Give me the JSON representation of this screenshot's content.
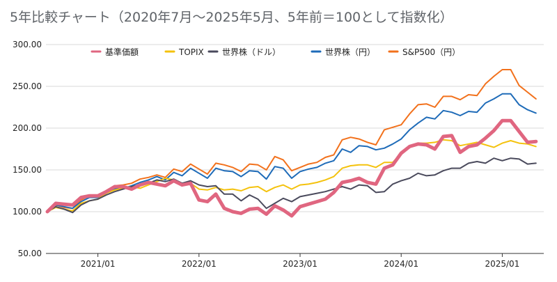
{
  "chart_data": {
    "type": "line",
    "title": "5年比較チャート（2020年7月〜2025年5月、5年前＝100として指数化）",
    "xlabel": "",
    "ylabel": "",
    "ylim": [
      50,
      300
    ],
    "yticks": [
      "300.00",
      "250.00",
      "200.00",
      "150.00",
      "100.00",
      "50.00"
    ],
    "x_start": "2020/07",
    "x_tick_labels": [
      "2021/01",
      "2022/01",
      "2023/01",
      "2024/01",
      "2025/01"
    ],
    "x_tick_months": [
      6,
      18,
      30,
      42,
      54
    ],
    "grid": true,
    "legend_position": "top",
    "series": [
      {
        "name": "基準価額",
        "color": "#e06680",
        "values": [
          100,
          110,
          109,
          108,
          117,
          119,
          119,
          124,
          130,
          130,
          127,
          132,
          135,
          133,
          131,
          137,
          132,
          134,
          114,
          112,
          121,
          104,
          100,
          98,
          103,
          104,
          97,
          107,
          102,
          95,
          106,
          109,
          112,
          115,
          123,
          135,
          137,
          140,
          135,
          133,
          152,
          156,
          170,
          178,
          181,
          180,
          175,
          190,
          191,
          171,
          178,
          180,
          188,
          197,
          209,
          209,
          196,
          183,
          184
        ]
      },
      {
        "name": "TOPIX",
        "color": "#f4c20d",
        "values": [
          100,
          105,
          103,
          101,
          110,
          113,
          115,
          122,
          126,
          128,
          130,
          128,
          132,
          136,
          140,
          138,
          133,
          134,
          127,
          126,
          129,
          126,
          127,
          125,
          129,
          130,
          124,
          129,
          132,
          127,
          132,
          133,
          135,
          138,
          142,
          152,
          155,
          156,
          156,
          153,
          159,
          159,
          170,
          178,
          182,
          182,
          183,
          186,
          185,
          179,
          181,
          183,
          180,
          177,
          182,
          185,
          182,
          181,
          178
        ]
      },
      {
        "name": "世界株（ドル）",
        "color": "#4a4a5c",
        "values": [
          100,
          106,
          103,
          99,
          108,
          113,
          115,
          120,
          124,
          127,
          130,
          132,
          134,
          138,
          136,
          139,
          134,
          137,
          132,
          130,
          131,
          121,
          121,
          113,
          120,
          115,
          104,
          110,
          116,
          112,
          118,
          120,
          122,
          124,
          127,
          130,
          127,
          132,
          131,
          123,
          124,
          133,
          137,
          140,
          146,
          143,
          144,
          149,
          152,
          152,
          158,
          160,
          158,
          164,
          161,
          164,
          163,
          157,
          158
        ]
      },
      {
        "name": "世界株（円）",
        "color": "#1e6bb8",
        "values": [
          100,
          108,
          106,
          104,
          112,
          117,
          117,
          122,
          127,
          128,
          131,
          135,
          138,
          142,
          138,
          147,
          143,
          152,
          146,
          140,
          152,
          149,
          148,
          142,
          149,
          148,
          139,
          154,
          152,
          140,
          148,
          151,
          153,
          158,
          161,
          175,
          171,
          179,
          178,
          174,
          176,
          181,
          187,
          198,
          206,
          213,
          211,
          221,
          219,
          215,
          220,
          219,
          230,
          235,
          241,
          241,
          228,
          222,
          218
        ]
      },
      {
        "name": "S&P500（円）",
        "color": "#f2711c",
        "values": [
          100,
          108,
          105,
          104,
          114,
          119,
          119,
          125,
          131,
          132,
          134,
          139,
          141,
          144,
          141,
          151,
          148,
          157,
          151,
          145,
          158,
          156,
          153,
          148,
          157,
          156,
          150,
          166,
          162,
          149,
          153,
          157,
          159,
          165,
          168,
          186,
          189,
          187,
          183,
          180,
          198,
          201,
          204,
          217,
          228,
          229,
          225,
          238,
          238,
          234,
          240,
          239,
          253,
          262,
          270,
          270,
          251,
          243,
          235
        ]
      }
    ]
  }
}
